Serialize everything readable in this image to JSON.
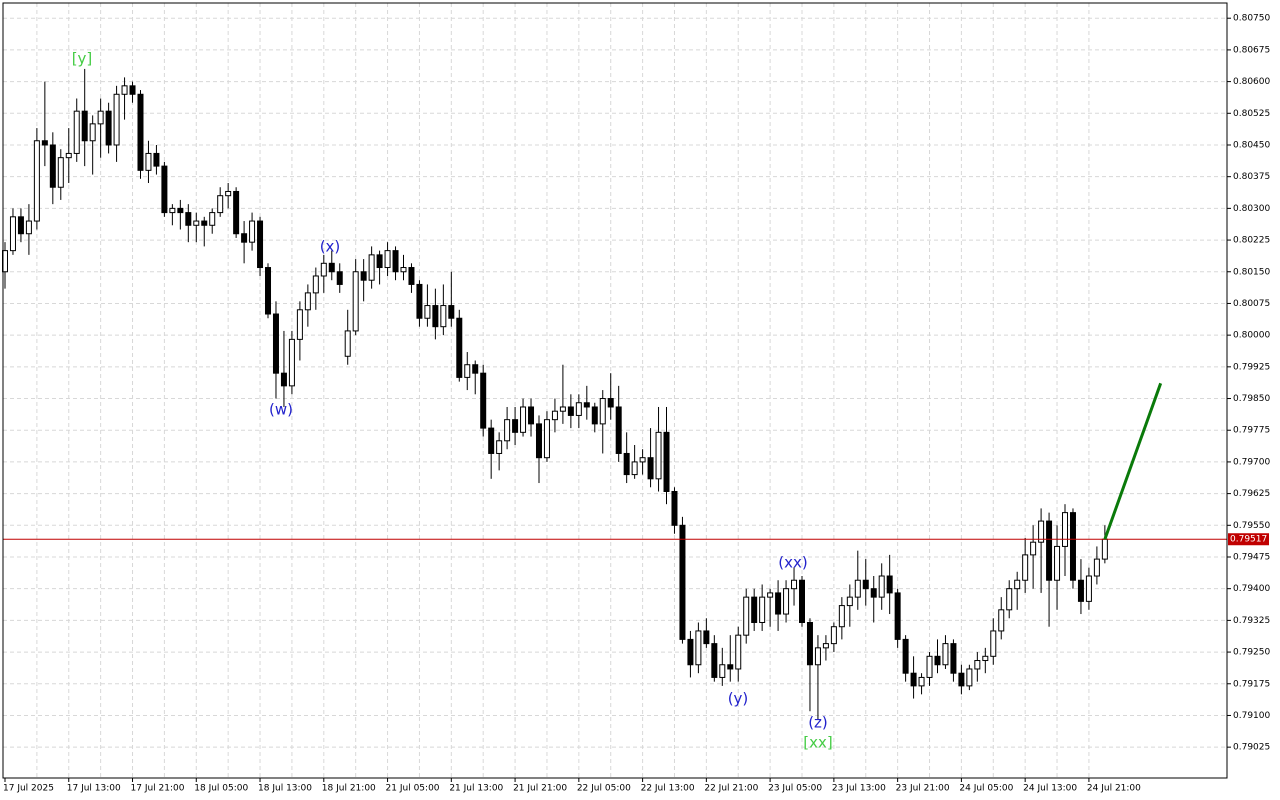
{
  "chart_data": {
    "type": "candlestick",
    "ylim": [
      0.78952,
      0.80786
    ],
    "yticks": [
      {
        "value": 0.8075,
        "label": "0.80750"
      },
      0.80675,
      {
        "value": 0.806,
        "label": "0.80600"
      },
      0.80525,
      {
        "value": 0.8045,
        "label": "0.80450"
      },
      0.80375,
      {
        "value": 0.803,
        "label": "0.80300"
      },
      0.80225,
      {
        "value": 0.8015,
        "label": "0.80150"
      },
      0.80075,
      {
        "value": 0.8,
        "label": "0.80000"
      },
      0.79925,
      {
        "value": 0.7985,
        "label": "0.79850"
      },
      0.79775,
      {
        "value": 0.797,
        "label": "0.79700"
      },
      0.79625,
      {
        "value": 0.7955,
        "label": "0.79550"
      },
      0.79475,
      {
        "value": 0.794,
        "label": "0.79400"
      },
      0.79325,
      {
        "value": 0.7925,
        "label": "0.79250"
      },
      0.79175,
      {
        "value": 0.791,
        "label": "0.79100"
      },
      0.79025
    ],
    "grid": true,
    "bull_color": "#ffffff",
    "bear_color": "#000000",
    "categories": [
      "17 Jul 2025",
      null,
      null,
      null,
      null,
      null,
      null,
      null,
      "17 Jul 13:00",
      null,
      null,
      null,
      null,
      null,
      null,
      null,
      "17 Jul 21:00",
      null,
      null,
      null,
      null,
      null,
      null,
      null,
      "18 Jul 05:00",
      null,
      null,
      null,
      null,
      null,
      null,
      null,
      "18 Jul 13:00",
      null,
      null,
      null,
      null,
      null,
      null,
      null,
      "18 Jul 21:00",
      null,
      null,
      null,
      null,
      null,
      null,
      null,
      "21 Jul 05:00",
      null,
      null,
      null,
      null,
      null,
      null,
      null,
      "21 Jul 13:00",
      null,
      null,
      null,
      null,
      null,
      null,
      null,
      "21 Jul 21:00",
      null,
      null,
      null,
      null,
      null,
      null,
      null,
      "22 Jul 05:00",
      null,
      null,
      null,
      null,
      null,
      null,
      null,
      "22 Jul 13:00",
      null,
      null,
      null,
      null,
      null,
      null,
      null,
      "22 Jul 21:00",
      null,
      null,
      null,
      null,
      null,
      null,
      null,
      "23 Jul 05:00",
      null,
      null,
      null,
      null,
      null,
      null,
      null,
      "23 Jul 13:00",
      null,
      null,
      null,
      null,
      null,
      null,
      null,
      "23 Jul 21:00",
      null,
      null,
      null,
      null,
      null,
      null,
      null,
      "24 Jul 05:00",
      null,
      null,
      null,
      null,
      null,
      null,
      null,
      "24 Jul 13:00",
      null,
      null,
      null,
      null,
      null,
      null,
      null,
      "24 Jul 21:00",
      null,
      null
    ],
    "ohlc": [
      [
        0.8015,
        0.8022,
        0.8011,
        0.802
      ],
      [
        0.802,
        0.803,
        0.8019,
        0.8028
      ],
      [
        0.8028,
        0.803,
        0.8022,
        0.8024
      ],
      [
        0.8024,
        0.8031,
        0.8019,
        0.8027
      ],
      [
        0.8027,
        0.8049,
        0.8025,
        0.8046
      ],
      [
        0.8046,
        0.806,
        0.804,
        0.8045
      ],
      [
        0.8045,
        0.8048,
        0.8031,
        0.8035
      ],
      [
        0.8035,
        0.8044,
        0.8032,
        0.8042
      ],
      [
        0.8042,
        0.8049,
        0.8036,
        0.8043
      ],
      [
        0.8043,
        0.8056,
        0.8041,
        0.8053
      ],
      [
        0.8053,
        0.8063,
        0.804,
        0.8046
      ],
      [
        0.8046,
        0.8052,
        0.8038,
        0.805
      ],
      [
        0.805,
        0.8056,
        0.8042,
        0.8053
      ],
      [
        0.8053,
        0.8055,
        0.8043,
        0.8045
      ],
      [
        0.8045,
        0.8059,
        0.8041,
        0.8057
      ],
      [
        0.8057,
        0.8061,
        0.8051,
        0.8059
      ],
      [
        0.8059,
        0.806,
        0.8055,
        0.8057
      ],
      [
        0.8057,
        0.8058,
        0.8037,
        0.8039
      ],
      [
        0.8039,
        0.8046,
        0.8036,
        0.8043
      ],
      [
        0.8043,
        0.8045,
        0.8038,
        0.804
      ],
      [
        0.804,
        0.8041,
        0.8028,
        0.8029
      ],
      [
        0.8029,
        0.8031,
        0.8026,
        0.803
      ],
      [
        0.803,
        0.8032,
        0.8025,
        0.8029
      ],
      [
        0.8029,
        0.8031,
        0.8022,
        0.8026
      ],
      [
        0.8026,
        0.8029,
        0.8022,
        0.8027
      ],
      [
        0.8027,
        0.8028,
        0.8021,
        0.8026
      ],
      [
        0.8026,
        0.803,
        0.8024,
        0.8029
      ],
      [
        0.8029,
        0.8035,
        0.8028,
        0.8033
      ],
      [
        0.8033,
        0.8036,
        0.803,
        0.8034
      ],
      [
        0.8034,
        0.8035,
        0.8023,
        0.8024
      ],
      [
        0.8024,
        0.8027,
        0.8017,
        0.8022
      ],
      [
        0.8022,
        0.8029,
        0.802,
        0.8027
      ],
      [
        0.8027,
        0.8028,
        0.8014,
        0.8016
      ],
      [
        0.8016,
        0.8017,
        0.8004,
        0.8005
      ],
      [
        0.8005,
        0.8008,
        0.7985,
        0.7991
      ],
      [
        0.7991,
        0.8001,
        0.7983,
        0.7988
      ],
      [
        0.7988,
        0.8001,
        0.7986,
        0.7999
      ],
      [
        0.7999,
        0.8008,
        0.7994,
        0.8006
      ],
      [
        0.8006,
        0.8012,
        0.8002,
        0.801
      ],
      [
        0.801,
        0.8016,
        0.8006,
        0.8014
      ],
      [
        0.8014,
        0.8019,
        0.801,
        0.8017
      ],
      [
        0.8017,
        0.802,
        0.8013,
        0.8015
      ],
      [
        0.8015,
        0.8017,
        0.801,
        0.8012
      ],
      [
        0.7995,
        0.8006,
        0.7993,
        0.8001
      ],
      [
        0.8001,
        0.8018,
        0.8,
        0.8015
      ],
      [
        0.8015,
        0.8018,
        0.8008,
        0.8013
      ],
      [
        0.8013,
        0.8021,
        0.8011,
        0.8019
      ],
      [
        0.8019,
        0.802,
        0.8012,
        0.8016
      ],
      [
        0.8016,
        0.8022,
        0.8014,
        0.802
      ],
      [
        0.802,
        0.8021,
        0.8013,
        0.8015
      ],
      [
        0.8015,
        0.8019,
        0.8013,
        0.8016
      ],
      [
        0.8016,
        0.8017,
        0.801,
        0.8012
      ],
      [
        0.8012,
        0.8013,
        0.8002,
        0.8004
      ],
      [
        0.8004,
        0.8012,
        0.8002,
        0.8007
      ],
      [
        0.8007,
        0.8011,
        0.7999,
        0.8002
      ],
      [
        0.8002,
        0.8012,
        0.8,
        0.8007
      ],
      [
        0.8007,
        0.8015,
        0.8002,
        0.8004
      ],
      [
        0.8004,
        0.8006,
        0.7989,
        0.799
      ],
      [
        0.799,
        0.7996,
        0.7987,
        0.7993
      ],
      [
        0.7993,
        0.7994,
        0.7986,
        0.7991
      ],
      [
        0.7991,
        0.7993,
        0.7976,
        0.7978
      ],
      [
        0.7978,
        0.798,
        0.7966,
        0.7972
      ],
      [
        0.7972,
        0.7977,
        0.7968,
        0.7975
      ],
      [
        0.7975,
        0.7983,
        0.7973,
        0.798
      ],
      [
        0.798,
        0.7983,
        0.7974,
        0.7977
      ],
      [
        0.7977,
        0.7985,
        0.7976,
        0.7983
      ],
      [
        0.7983,
        0.7985,
        0.7976,
        0.7979
      ],
      [
        0.7979,
        0.7981,
        0.7965,
        0.7971
      ],
      [
        0.7971,
        0.7982,
        0.797,
        0.798
      ],
      [
        0.798,
        0.7985,
        0.7977,
        0.7982
      ],
      [
        0.7982,
        0.7993,
        0.7979,
        0.7983
      ],
      [
        0.7983,
        0.7986,
        0.7978,
        0.7981
      ],
      [
        0.7981,
        0.7986,
        0.7978,
        0.7984
      ],
      [
        0.7984,
        0.7988,
        0.798,
        0.7983
      ],
      [
        0.7983,
        0.7984,
        0.7977,
        0.7979
      ],
      [
        0.7979,
        0.7987,
        0.7972,
        0.7985
      ],
      [
        0.7985,
        0.7991,
        0.798,
        0.7983
      ],
      [
        0.7983,
        0.7988,
        0.797,
        0.7972
      ],
      [
        0.7972,
        0.7977,
        0.7965,
        0.7967
      ],
      [
        0.7967,
        0.7974,
        0.7966,
        0.797
      ],
      [
        0.797,
        0.7973,
        0.7967,
        0.7971
      ],
      [
        0.7971,
        0.7978,
        0.7964,
        0.7966
      ],
      [
        0.7966,
        0.7983,
        0.7963,
        0.7977
      ],
      [
        0.7977,
        0.7983,
        0.796,
        0.7963
      ],
      [
        0.7963,
        0.7964,
        0.7953,
        0.7955
      ],
      [
        0.7955,
        0.7957,
        0.7927,
        0.7928
      ],
      [
        0.7928,
        0.793,
        0.7919,
        0.7922
      ],
      [
        0.7922,
        0.7932,
        0.792,
        0.793
      ],
      [
        0.793,
        0.7933,
        0.7926,
        0.7927
      ],
      [
        0.7927,
        0.7929,
        0.7918,
        0.7919
      ],
      [
        0.7919,
        0.7926,
        0.7917,
        0.7922
      ],
      [
        0.7922,
        0.7929,
        0.7918,
        0.7921
      ],
      [
        0.7921,
        0.7931,
        0.7918,
        0.7929
      ],
      [
        0.7929,
        0.794,
        0.7927,
        0.7938
      ],
      [
        0.7938,
        0.794,
        0.793,
        0.7932
      ],
      [
        0.7932,
        0.7941,
        0.793,
        0.7938
      ],
      [
        0.7938,
        0.794,
        0.7931,
        0.7939
      ],
      [
        0.7939,
        0.7942,
        0.793,
        0.7934
      ],
      [
        0.7934,
        0.7942,
        0.7932,
        0.794
      ],
      [
        0.794,
        0.7945,
        0.7936,
        0.7942
      ],
      [
        0.7942,
        0.7943,
        0.7931,
        0.7932
      ],
      [
        0.7932,
        0.7933,
        0.7911,
        0.7922
      ],
      [
        0.7922,
        0.7929,
        0.7909,
        0.7926
      ],
      [
        0.7926,
        0.7929,
        0.7923,
        0.7927
      ],
      [
        0.7927,
        0.7932,
        0.7925,
        0.7931
      ],
      [
        0.7931,
        0.7938,
        0.7928,
        0.7936
      ],
      [
        0.7936,
        0.7941,
        0.7931,
        0.7938
      ],
      [
        0.7938,
        0.7949,
        0.7935,
        0.7942
      ],
      [
        0.7942,
        0.7947,
        0.7936,
        0.794
      ],
      [
        0.794,
        0.7943,
        0.7932,
        0.7938
      ],
      [
        0.7938,
        0.7946,
        0.7935,
        0.7943
      ],
      [
        0.7943,
        0.7948,
        0.7934,
        0.7939
      ],
      [
        0.7939,
        0.794,
        0.7926,
        0.7928
      ],
      [
        0.7928,
        0.7929,
        0.7918,
        0.792
      ],
      [
        0.792,
        0.7924,
        0.7914,
        0.7917
      ],
      [
        0.7917,
        0.792,
        0.7915,
        0.7919
      ],
      [
        0.7919,
        0.7925,
        0.7917,
        0.7924
      ],
      [
        0.7924,
        0.7928,
        0.792,
        0.7922
      ],
      [
        0.7922,
        0.7929,
        0.7921,
        0.7927
      ],
      [
        0.7927,
        0.7928,
        0.7918,
        0.792
      ],
      [
        0.792,
        0.7922,
        0.7915,
        0.7917
      ],
      [
        0.7917,
        0.7922,
        0.7916,
        0.7921
      ],
      [
        0.7921,
        0.7925,
        0.7918,
        0.7923
      ],
      [
        0.7923,
        0.7926,
        0.792,
        0.7924
      ],
      [
        0.7924,
        0.7933,
        0.7922,
        0.793
      ],
      [
        0.793,
        0.7938,
        0.7928,
        0.7935
      ],
      [
        0.7935,
        0.7942,
        0.7933,
        0.794
      ],
      [
        0.794,
        0.7944,
        0.7935,
        0.7942
      ],
      [
        0.7942,
        0.7952,
        0.7939,
        0.7948
      ],
      [
        0.7948,
        0.7955,
        0.794,
        0.7951
      ],
      [
        0.7951,
        0.7959,
        0.7939,
        0.7956
      ],
      [
        0.7956,
        0.7958,
        0.7931,
        0.7942
      ],
      [
        0.7942,
        0.7955,
        0.7935,
        0.795
      ],
      [
        0.795,
        0.796,
        0.7943,
        0.7958
      ],
      [
        0.7958,
        0.7959,
        0.794,
        0.7942
      ],
      [
        0.7942,
        0.7947,
        0.7934,
        0.7937
      ],
      [
        0.7937,
        0.7945,
        0.7935,
        0.7943
      ],
      [
        0.7943,
        0.795,
        0.7941,
        0.7947
      ],
      [
        0.7947,
        0.7955,
        0.7946,
        0.79517
      ]
    ],
    "current_price": {
      "value": 0.79517,
      "color": "#c00000"
    },
    "projection": {
      "color": "#0a7a0a",
      "values": [
        0.79517,
        0.79886
      ]
    },
    "annotations": [
      {
        "text": "[y]",
        "color": "#44cc44"
      },
      {
        "text": "(x)",
        "color": "#2222cc"
      },
      {
        "text": "(w)",
        "color": "#2222cc"
      },
      {
        "text": "(y)",
        "color": "#2222cc"
      },
      {
        "text": "(xx)",
        "color": "#2222cc"
      },
      {
        "text": "(z)",
        "color": "#2222cc"
      },
      {
        "text": "[xx]",
        "color": "#44cc44"
      }
    ]
  }
}
